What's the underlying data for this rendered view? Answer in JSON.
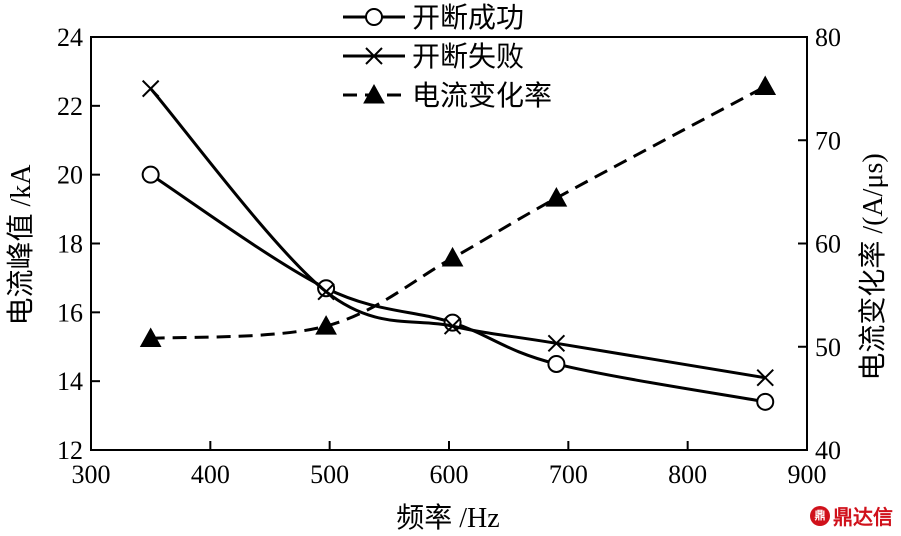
{
  "chart_data": {
    "type": "line",
    "x": [
      350,
      497,
      603,
      690,
      865
    ],
    "xlabel": "频率 /Hz",
    "ylabel": "电流峰值 /kA",
    "y2label": "电流变化率 /(A/μs)",
    "xlim": [
      300,
      900
    ],
    "ylim": [
      12,
      24
    ],
    "y2lim": [
      40,
      80
    ],
    "xticks": [
      "300",
      "400",
      "500",
      "600",
      "700",
      "800",
      "900"
    ],
    "yticks": [
      "12",
      "14",
      "16",
      "18",
      "20",
      "22",
      "24"
    ],
    "y2ticks": [
      "40",
      "50",
      "60",
      "70",
      "80"
    ],
    "grid": false,
    "legend_position": "top-center",
    "series": [
      {
        "name": "开断成功",
        "axis": "left",
        "marker": "circle",
        "line": "solid",
        "values": [
          20.0,
          16.7,
          15.7,
          14.5,
          13.4
        ]
      },
      {
        "name": "开断失败",
        "axis": "left",
        "marker": "x",
        "line": "solid",
        "values": [
          22.5,
          16.6,
          15.6,
          15.1,
          14.1
        ]
      },
      {
        "name": "电流变化率",
        "axis": "right",
        "marker": "triangle-filled",
        "line": "dashed",
        "values": [
          50.8,
          52.0,
          58.6,
          64.4,
          75.2
        ]
      }
    ]
  },
  "watermark": {
    "text": "鼎达信",
    "logo": "鼎达信-logo-icon"
  }
}
